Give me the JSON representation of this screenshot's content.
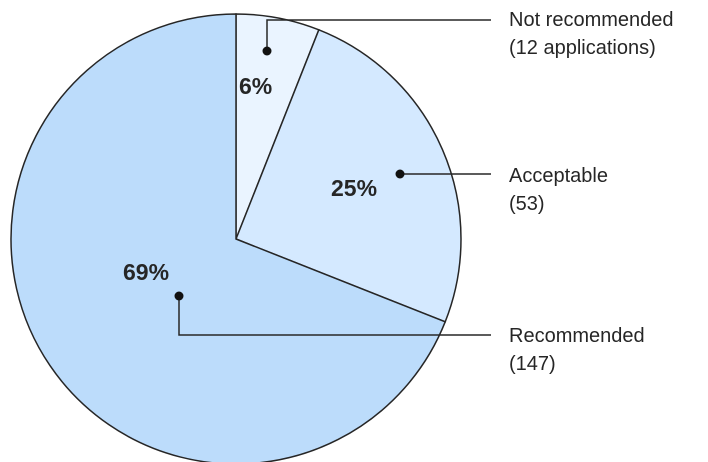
{
  "chart_data": {
    "type": "pie",
    "slices": [
      {
        "name": "Not recommended",
        "percent": 6,
        "label": "6%",
        "legend_line1": "Not recommended",
        "legend_line2": "(12 applications)",
        "count": 12,
        "color": "#eaf4ff"
      },
      {
        "name": "Acceptable",
        "percent": 25,
        "label": "25%",
        "legend_line1": "Acceptable",
        "legend_line2": "(53)",
        "count": 53,
        "color": "#d4e9ff"
      },
      {
        "name": "Recommended",
        "percent": 69,
        "label": "69%",
        "legend_line1": "Recommended",
        "legend_line2": "(147)",
        "count": 147,
        "color": "#bcdcfb"
      }
    ],
    "start_angle_deg": 0,
    "direction": "clockwise",
    "legend_placement": "right"
  }
}
